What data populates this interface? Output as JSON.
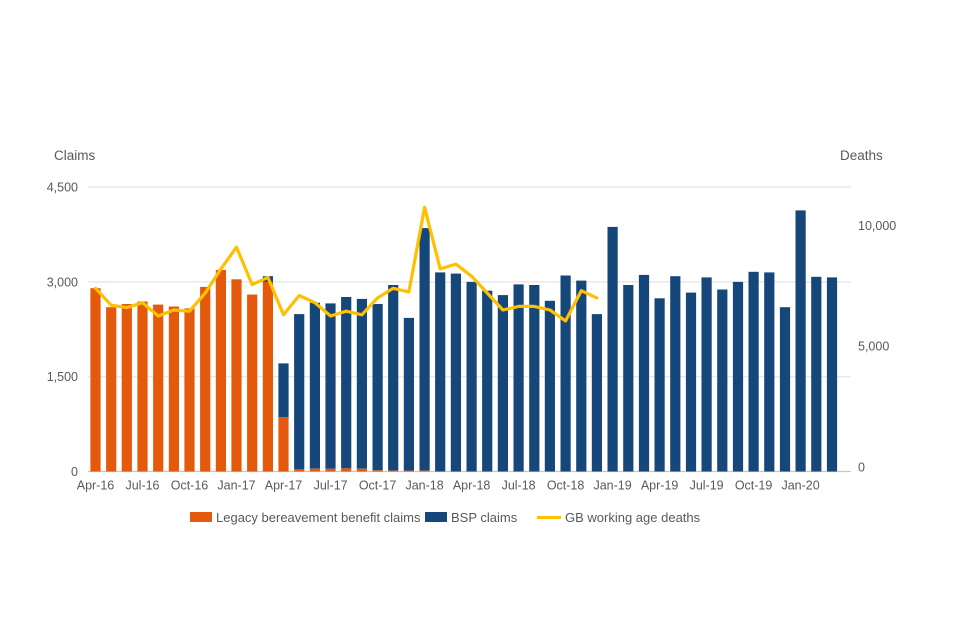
{
  "page": {
    "background": "#ffffff"
  },
  "left_axis": {
    "title": "Claims",
    "ticks": [
      {
        "v": 0,
        "label": "0"
      },
      {
        "v": 1500,
        "label": "1,500"
      },
      {
        "v": 3000,
        "label": "3,000"
      },
      {
        "v": 4500,
        "label": "4,500"
      }
    ]
  },
  "right_axis": {
    "title": "Deaths",
    "ticks": [
      {
        "v": 0,
        "label": "0"
      },
      {
        "v": 5000,
        "label": "5,000"
      },
      {
        "v": 10000,
        "label": "10,000"
      }
    ]
  },
  "legend": {
    "items": [
      {
        "label": "Legacy bereavement benefit claims",
        "swatch": "rect",
        "color": "#E4590C"
      },
      {
        "label": "BSP claims",
        "swatch": "rect",
        "color": "#15477A"
      },
      {
        "label": "GB working age deaths",
        "swatch": "line",
        "color": "#FFC000"
      }
    ]
  },
  "chart_data": {
    "type": "bar",
    "subtype": "stacked bars with dual-axis line overlay",
    "categories": [
      "Apr-16",
      "May-16",
      "Jun-16",
      "Jul-16",
      "Aug-16",
      "Sep-16",
      "Oct-16",
      "Nov-16",
      "Dec-16",
      "Jan-17",
      "Feb-17",
      "Mar-17",
      "Apr-17",
      "May-17",
      "Jun-17",
      "Jul-17",
      "Aug-17",
      "Sep-17",
      "Oct-17",
      "Nov-17",
      "Dec-17",
      "Jan-18",
      "Feb-18",
      "Mar-18",
      "Apr-18",
      "May-18",
      "Jun-18",
      "Jul-18",
      "Aug-18",
      "Sep-18",
      "Oct-18",
      "Nov-18",
      "Dec-18",
      "Jan-19",
      "Feb-19",
      "Mar-19",
      "Apr-19",
      "May-19",
      "Jun-19",
      "Jul-19",
      "Aug-19",
      "Sep-19",
      "Oct-19",
      "Nov-19",
      "Dec-19",
      "Jan-20",
      "Feb-20",
      "Mar-20"
    ],
    "x_tick_every": 3,
    "series": [
      {
        "name": "Legacy bereavement benefit claims",
        "type": "bar",
        "axis": "left",
        "color": "#E4590C",
        "values": [
          2900,
          2600,
          2650,
          2690,
          2640,
          2610,
          2580,
          2920,
          3190,
          3040,
          2800,
          3000,
          860,
          35,
          45,
          45,
          50,
          45,
          20,
          15,
          15,
          15,
          0,
          0,
          0,
          0,
          0,
          0,
          0,
          0,
          0,
          0,
          0,
          0,
          0,
          0,
          0,
          0,
          0,
          0,
          0,
          0,
          0,
          0,
          0,
          0,
          0,
          0
        ]
      },
      {
        "name": "BSP claims",
        "type": "bar",
        "axis": "left",
        "color": "#15477A",
        "values": [
          0,
          0,
          0,
          0,
          0,
          0,
          0,
          0,
          0,
          0,
          0,
          90,
          850,
          2455,
          2625,
          2615,
          2710,
          2685,
          2630,
          2935,
          2415,
          3835,
          3150,
          3130,
          3000,
          2860,
          2790,
          2960,
          2950,
          2700,
          3100,
          3020,
          2490,
          3870,
          2950,
          3110,
          2740,
          3090,
          2830,
          3070,
          2880,
          3000,
          3160,
          3150,
          2600,
          4130,
          3080,
          3070
        ]
      },
      {
        "name": "GB working age deaths",
        "type": "line",
        "axis": "right",
        "color": "#FFC000",
        "values": [
          7400,
          6700,
          6600,
          6800,
          6250,
          6500,
          6450,
          7200,
          8200,
          9100,
          7550,
          7850,
          6300,
          7100,
          6800,
          6250,
          6450,
          6300,
          7000,
          7400,
          7250,
          10750,
          8200,
          8400,
          7900,
          7200,
          6500,
          6650,
          6650,
          6500,
          6050,
          7300,
          7000,
          null,
          null,
          null,
          null,
          null,
          null,
          null,
          null,
          null,
          null,
          null,
          null,
          null,
          null,
          null
        ]
      }
    ],
    "left_ylim": [
      0,
      4500
    ],
    "right_ylim": [
      0,
      11500
    ],
    "grid": "horizontal only",
    "legend_position": "bottom"
  }
}
